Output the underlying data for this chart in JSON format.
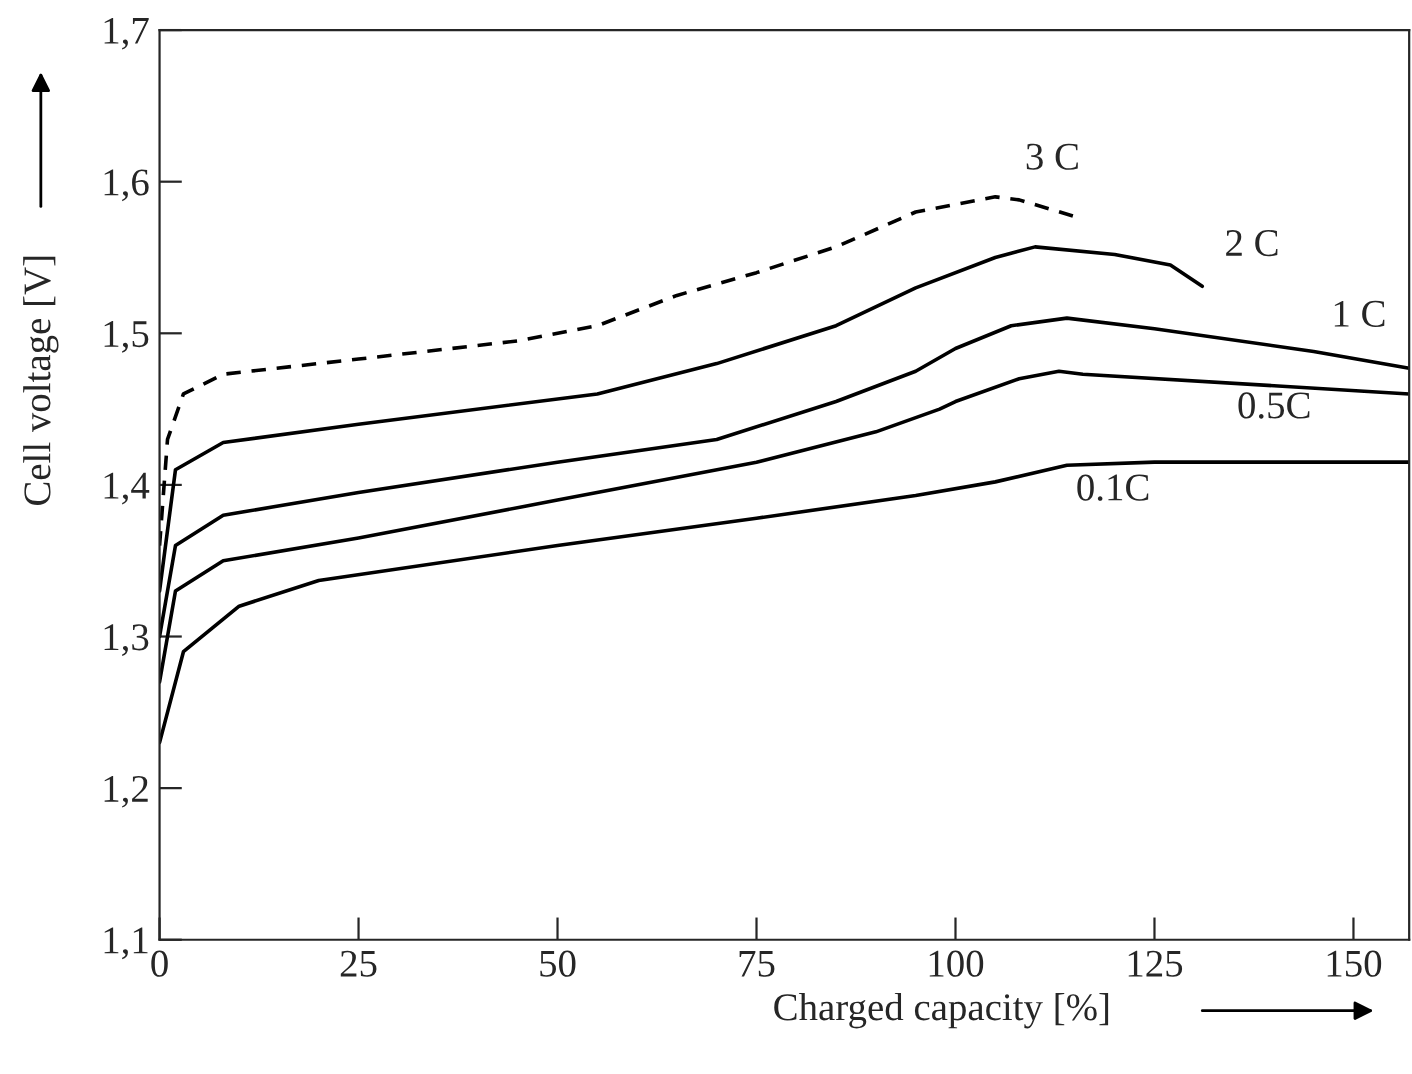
{
  "chart_data": {
    "type": "line",
    "xlabel": "Charged capacity [%]",
    "ylabel": "Cell voltage [V]",
    "xlim": [
      0,
      157
    ],
    "xticks": [
      0,
      25,
      50,
      75,
      100,
      125,
      150
    ],
    "ylim": [
      1.1,
      1.7
    ],
    "yticks": [
      {
        "value": 1.1,
        "label": "1,1"
      },
      {
        "value": 1.2,
        "label": "1,2"
      },
      {
        "value": 1.3,
        "label": "1,3"
      },
      {
        "value": 1.4,
        "label": "1,4"
      },
      {
        "value": 1.5,
        "label": "1,5"
      },
      {
        "value": 1.6,
        "label": "1,6"
      },
      {
        "value": 1.7,
        "label": "1,7"
      }
    ],
    "grid": false,
    "legend": false,
    "marker": "none",
    "series": [
      {
        "name": "3 C",
        "color": "#000000",
        "line_style": "dashed",
        "x": [
          0,
          1,
          3,
          8,
          25,
          45,
          55,
          65,
          75,
          85,
          95,
          105,
          108,
          115
        ],
        "values": [
          1.36,
          1.43,
          1.46,
          1.473,
          1.483,
          1.495,
          1.505,
          1.525,
          1.54,
          1.557,
          1.58,
          1.59,
          1.588,
          1.577
        ]
      },
      {
        "name": "2 C",
        "color": "#000000",
        "line_style": "solid",
        "x": [
          0,
          2,
          8,
          25,
          55,
          70,
          85,
          95,
          105,
          110,
          120,
          127,
          131
        ],
        "values": [
          1.33,
          1.41,
          1.428,
          1.44,
          1.46,
          1.48,
          1.505,
          1.53,
          1.55,
          1.557,
          1.552,
          1.545,
          1.531
        ]
      },
      {
        "name": "1 C",
        "color": "#000000",
        "line_style": "solid",
        "x": [
          0,
          2,
          8,
          25,
          50,
          70,
          85,
          95,
          100,
          107,
          114,
          125,
          145,
          157
        ],
        "values": [
          1.3,
          1.36,
          1.38,
          1.395,
          1.415,
          1.43,
          1.455,
          1.475,
          1.49,
          1.505,
          1.51,
          1.503,
          1.488,
          1.477
        ]
      },
      {
        "name": "0.5C",
        "color": "#000000",
        "line_style": "solid",
        "x": [
          0,
          2,
          8,
          25,
          50,
          75,
          90,
          98,
          100,
          108,
          113,
          116,
          157
        ],
        "values": [
          1.27,
          1.33,
          1.35,
          1.365,
          1.39,
          1.415,
          1.435,
          1.45,
          1.455,
          1.47,
          1.475,
          1.473,
          1.46
        ]
      },
      {
        "name": "0.1C",
        "color": "#000000",
        "line_style": "solid",
        "x": [
          0,
          3,
          10,
          20,
          50,
          75,
          95,
          105,
          114,
          125,
          157
        ],
        "values": [
          1.23,
          1.29,
          1.32,
          1.337,
          1.36,
          1.378,
          1.393,
          1.402,
          1.413,
          1.415,
          1.415
        ]
      }
    ]
  }
}
